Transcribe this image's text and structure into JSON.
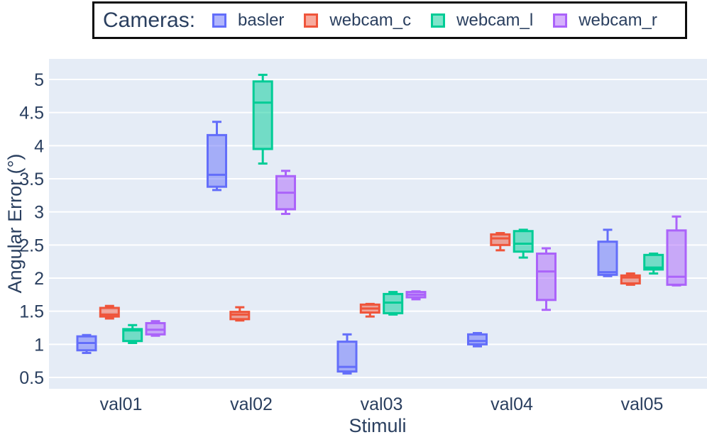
{
  "colors": {
    "plot_background": "#E5ECF6",
    "gridline": "#ffffff",
    "text": "#2a3f5f",
    "legend_border": "#0d0d0d",
    "page_background": "#ffffff"
  },
  "legend": {
    "title": "Cameras:",
    "items": [
      {
        "label": "basler",
        "color": "#636EFA",
        "fill": "rgba(99,110,250,0.5)"
      },
      {
        "label": "webcam_c",
        "color": "#EF553B",
        "fill": "rgba(239,85,59,0.5)"
      },
      {
        "label": "webcam_l",
        "color": "#00CC96",
        "fill": "rgba(0,204,150,0.5)"
      },
      {
        "label": "webcam_r",
        "color": "#AB63FA",
        "fill": "rgba(171,99,250,0.5)"
      }
    ]
  },
  "chart_data": {
    "type": "box",
    "title": "",
    "xlabel": "Stimuli",
    "ylabel": "Angular Error (°)",
    "categories": [
      "val01",
      "val02",
      "val03",
      "val04",
      "val05"
    ],
    "ylim": [
      0.33,
      5.31
    ],
    "yticks": [
      0.5,
      1,
      1.5,
      2,
      2.5,
      3,
      3.5,
      4,
      4.5,
      5
    ],
    "ytick_labels": [
      "0.5",
      "1",
      "1.5",
      "2",
      "2.5",
      "3",
      "3.5",
      "4",
      "4.5",
      "5"
    ],
    "grid": true,
    "legend_position": "top",
    "series": [
      {
        "name": "basler",
        "color": "#636EFA",
        "fill": "rgba(99,110,250,0.5)",
        "boxes": [
          {
            "whislo": 0.87,
            "q1": 0.91,
            "med": 1.02,
            "q3": 1.12,
            "whishi": 1.14
          },
          {
            "whislo": 3.33,
            "q1": 3.38,
            "med": 3.56,
            "q3": 4.16,
            "whishi": 4.36
          },
          {
            "whislo": 0.56,
            "q1": 0.59,
            "med": 0.66,
            "q3": 1.04,
            "whishi": 1.15
          },
          {
            "whislo": 0.97,
            "q1": 1.0,
            "med": 1.05,
            "q3": 1.15,
            "whishi": 1.17
          },
          {
            "whislo": 2.03,
            "q1": 2.05,
            "med": 2.09,
            "q3": 2.55,
            "whishi": 2.73
          }
        ]
      },
      {
        "name": "webcam_c",
        "color": "#EF553B",
        "fill": "rgba(239,85,59,0.5)",
        "boxes": [
          {
            "whislo": 1.39,
            "q1": 1.42,
            "med": 1.45,
            "q3": 1.55,
            "whishi": 1.58
          },
          {
            "whislo": 1.36,
            "q1": 1.38,
            "med": 1.45,
            "q3": 1.49,
            "whishi": 1.56
          },
          {
            "whislo": 1.42,
            "q1": 1.48,
            "med": 1.54,
            "q3": 1.6,
            "whishi": 1.61
          },
          {
            "whislo": 2.42,
            "q1": 2.5,
            "med": 2.6,
            "q3": 2.66,
            "whishi": 2.68
          },
          {
            "whislo": 1.9,
            "q1": 1.92,
            "med": 2.01,
            "q3": 2.04,
            "whishi": 2.07
          }
        ]
      },
      {
        "name": "webcam_l",
        "color": "#00CC96",
        "fill": "rgba(0,204,150,0.5)",
        "boxes": [
          {
            "whislo": 1.02,
            "q1": 1.05,
            "med": 1.21,
            "q3": 1.23,
            "whishi": 1.29
          },
          {
            "whislo": 3.73,
            "q1": 3.95,
            "med": 4.65,
            "q3": 4.97,
            "whishi": 5.07
          },
          {
            "whislo": 1.45,
            "q1": 1.47,
            "med": 1.63,
            "q3": 1.76,
            "whishi": 1.79
          },
          {
            "whislo": 2.31,
            "q1": 2.4,
            "med": 2.52,
            "q3": 2.71,
            "whishi": 2.73
          },
          {
            "whislo": 2.07,
            "q1": 2.13,
            "med": 2.16,
            "q3": 2.35,
            "whishi": 2.37
          }
        ]
      },
      {
        "name": "webcam_r",
        "color": "#AB63FA",
        "fill": "rgba(171,99,250,0.5)",
        "boxes": [
          {
            "whislo": 1.13,
            "q1": 1.15,
            "med": 1.22,
            "q3": 1.32,
            "whishi": 1.35
          },
          {
            "whislo": 2.97,
            "q1": 3.04,
            "med": 3.29,
            "q3": 3.54,
            "whishi": 3.62
          },
          {
            "whislo": 1.68,
            "q1": 1.71,
            "med": 1.75,
            "q3": 1.79,
            "whishi": 1.8
          },
          {
            "whislo": 1.52,
            "q1": 1.67,
            "med": 2.1,
            "q3": 2.37,
            "whishi": 2.45
          },
          {
            "whislo": 1.89,
            "q1": 1.9,
            "med": 2.02,
            "q3": 2.72,
            "whishi": 2.93
          }
        ]
      }
    ]
  }
}
